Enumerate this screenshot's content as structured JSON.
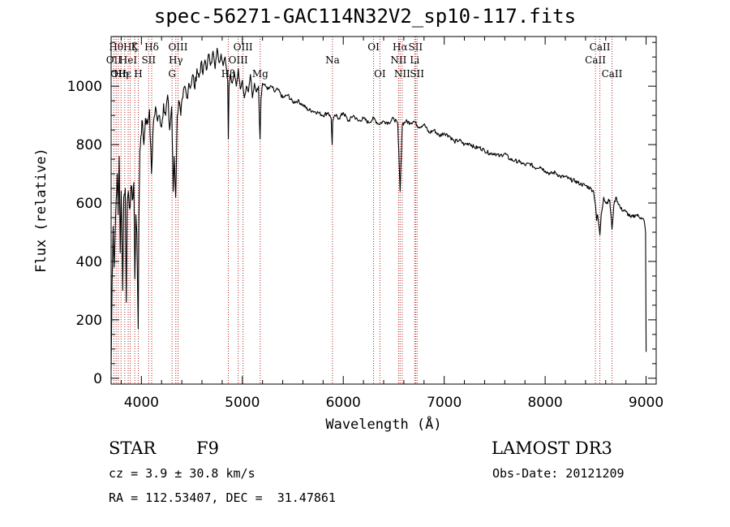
{
  "chart_data": {
    "type": "line",
    "title": "spec-56271-GAC114N32V2_sp10-117.fits",
    "xlabel": "Wavelength (Å)",
    "ylabel": "Flux (relative)",
    "xlim": [
      3700,
      9100
    ],
    "ylim": [
      -20,
      1170
    ],
    "xticks": [
      "4000",
      "5000",
      "6000",
      "7000",
      "8000",
      "9000"
    ],
    "yticks": [
      "0",
      "200",
      "400",
      "600",
      "800",
      "1000"
    ],
    "series": [
      {
        "points": [
          [
            3700,
            30
          ],
          [
            3710,
            330
          ],
          [
            3720,
            520
          ],
          [
            3730,
            380
          ],
          [
            3745,
            560
          ],
          [
            3760,
            700
          ],
          [
            3770,
            560
          ],
          [
            3780,
            760
          ],
          [
            3790,
            430
          ],
          [
            3800,
            640
          ],
          [
            3815,
            300
          ],
          [
            3825,
            620
          ],
          [
            3840,
            650
          ],
          [
            3850,
            260
          ],
          [
            3860,
            600
          ],
          [
            3870,
            640
          ],
          [
            3885,
            580
          ],
          [
            3900,
            660
          ],
          [
            3910,
            610
          ],
          [
            3925,
            670
          ],
          [
            3935,
            340
          ],
          [
            3945,
            560
          ],
          [
            3955,
            500
          ],
          [
            3968,
            170
          ],
          [
            3975,
            520
          ],
          [
            3985,
            780
          ],
          [
            3995,
            830
          ],
          [
            4010,
            880
          ],
          [
            4025,
            800
          ],
          [
            4040,
            890
          ],
          [
            4060,
            870
          ],
          [
            4080,
            920
          ],
          [
            4100,
            700
          ],
          [
            4120,
            880
          ],
          [
            4140,
            930
          ],
          [
            4160,
            880
          ],
          [
            4180,
            900
          ],
          [
            4200,
            860
          ],
          [
            4220,
            940
          ],
          [
            4240,
            900
          ],
          [
            4260,
            970
          ],
          [
            4280,
            850
          ],
          [
            4300,
            930
          ],
          [
            4315,
            640
          ],
          [
            4325,
            760
          ],
          [
            4340,
            620
          ],
          [
            4355,
            900
          ],
          [
            4370,
            950
          ],
          [
            4390,
            900
          ],
          [
            4410,
            960
          ],
          [
            4430,
            1000
          ],
          [
            4450,
            960
          ],
          [
            4470,
            1010
          ],
          [
            4490,
            1000
          ],
          [
            4510,
            1040
          ],
          [
            4530,
            990
          ],
          [
            4550,
            1060
          ],
          [
            4570,
            1030
          ],
          [
            4590,
            1080
          ],
          [
            4610,
            1040
          ],
          [
            4630,
            1090
          ],
          [
            4650,
            1060
          ],
          [
            4670,
            1110
          ],
          [
            4690,
            1080
          ],
          [
            4710,
            1120
          ],
          [
            4730,
            1060
          ],
          [
            4750,
            1130
          ],
          [
            4770,
            1080
          ],
          [
            4790,
            1110
          ],
          [
            4810,
            1070
          ],
          [
            4830,
            1100
          ],
          [
            4845,
            1050
          ],
          [
            4855,
            1020
          ],
          [
            4861,
            820
          ],
          [
            4868,
            1000
          ],
          [
            4880,
            1040
          ],
          [
            4900,
            1010
          ],
          [
            4920,
            1050
          ],
          [
            4940,
            1000
          ],
          [
            4960,
            1060
          ],
          [
            4980,
            990
          ],
          [
            5000,
            1020
          ],
          [
            5020,
            960
          ],
          [
            5040,
            1000
          ],
          [
            5060,
            980
          ],
          [
            5080,
            1040
          ],
          [
            5100,
            960
          ],
          [
            5120,
            1010
          ],
          [
            5140,
            980
          ],
          [
            5160,
            1000
          ],
          [
            5175,
            820
          ],
          [
            5185,
            960
          ],
          [
            5200,
            1010
          ],
          [
            5230,
            1000
          ],
          [
            5260,
            990
          ],
          [
            5290,
            1000
          ],
          [
            5320,
            980
          ],
          [
            5350,
            990
          ],
          [
            5400,
            960
          ],
          [
            5450,
            970
          ],
          [
            5500,
            945
          ],
          [
            5550,
            950
          ],
          [
            5600,
            935
          ],
          [
            5650,
            920
          ],
          [
            5700,
            915
          ],
          [
            5750,
            910
          ],
          [
            5800,
            900
          ],
          [
            5850,
            910
          ],
          [
            5880,
            890
          ],
          [
            5890,
            800
          ],
          [
            5895,
            880
          ],
          [
            5920,
            900
          ],
          [
            5960,
            890
          ],
          [
            6000,
            910
          ],
          [
            6050,
            880
          ],
          [
            6100,
            900
          ],
          [
            6150,
            880
          ],
          [
            6200,
            890
          ],
          [
            6250,
            875
          ],
          [
            6300,
            890
          ],
          [
            6350,
            870
          ],
          [
            6400,
            880
          ],
          [
            6450,
            875
          ],
          [
            6500,
            890
          ],
          [
            6540,
            870
          ],
          [
            6555,
            720
          ],
          [
            6563,
            640
          ],
          [
            6570,
            720
          ],
          [
            6585,
            870
          ],
          [
            6620,
            880
          ],
          [
            6660,
            875
          ],
          [
            6700,
            880
          ],
          [
            6750,
            860
          ],
          [
            6800,
            870
          ],
          [
            6850,
            840
          ],
          [
            6900,
            850
          ],
          [
            6950,
            830
          ],
          [
            7000,
            840
          ],
          [
            7050,
            830
          ],
          [
            7100,
            810
          ],
          [
            7150,
            815
          ],
          [
            7200,
            800
          ],
          [
            7250,
            805
          ],
          [
            7300,
            790
          ],
          [
            7350,
            790
          ],
          [
            7400,
            780
          ],
          [
            7450,
            770
          ],
          [
            7500,
            770
          ],
          [
            7550,
            760
          ],
          [
            7600,
            770
          ],
          [
            7650,
            750
          ],
          [
            7700,
            745
          ],
          [
            7750,
            740
          ],
          [
            7800,
            730
          ],
          [
            7850,
            735
          ],
          [
            7900,
            720
          ],
          [
            7950,
            725
          ],
          [
            8000,
            710
          ],
          [
            8050,
            700
          ],
          [
            8100,
            705
          ],
          [
            8150,
            690
          ],
          [
            8200,
            690
          ],
          [
            8250,
            680
          ],
          [
            8300,
            675
          ],
          [
            8350,
            665
          ],
          [
            8400,
            660
          ],
          [
            8450,
            650
          ],
          [
            8480,
            640
          ],
          [
            8500,
            590
          ],
          [
            8510,
            540
          ],
          [
            8520,
            560
          ],
          [
            8542,
            490
          ],
          [
            8555,
            560
          ],
          [
            8580,
            620
          ],
          [
            8600,
            600
          ],
          [
            8640,
            610
          ],
          [
            8662,
            510
          ],
          [
            8680,
            590
          ],
          [
            8700,
            620
          ],
          [
            8750,
            580
          ],
          [
            8800,
            570
          ],
          [
            8850,
            550
          ],
          [
            8900,
            560
          ],
          [
            8950,
            550
          ],
          [
            8980,
            540
          ],
          [
            8995,
            500
          ],
          [
            9000,
            90
          ]
        ]
      }
    ],
    "lines": [
      {
        "x": 3727,
        "labels": [
          "OII"
        ],
        "row": 2
      },
      {
        "x": 3750,
        "labels": [
          "Hθ"
        ],
        "row": 1
      },
      {
        "x": 3771,
        "labels": [
          "OII"
        ],
        "row": 3
      },
      {
        "x": 3798,
        "labels": [
          "Hη"
        ],
        "row": 3
      },
      {
        "x": 3835,
        "labels": [
          "Hε"
        ],
        "row": 3
      },
      {
        "x": 3869,
        "labels": [
          "HeI"
        ],
        "row": 2
      },
      {
        "x": 3889,
        "labels": [
          "Hζ"
        ],
        "row": 1
      },
      {
        "x": 3934,
        "labels": [
          "K"
        ],
        "row": 1
      },
      {
        "x": 3969,
        "labels": [
          "H"
        ],
        "row": 3
      },
      {
        "x": 4072,
        "labels": [
          "SII"
        ],
        "row": 2
      },
      {
        "x": 4102,
        "labels": [
          "Hδ"
        ],
        "row": 1
      },
      {
        "x": 4304,
        "labels": [
          "G"
        ],
        "row": 3
      },
      {
        "x": 4341,
        "labels": [
          "Hγ"
        ],
        "row": 2
      },
      {
        "x": 4363,
        "labels": [
          "OIII"
        ],
        "row": 1
      },
      {
        "x": 4861,
        "labels": [
          "Hβ"
        ],
        "row": 3
      },
      {
        "x": 4959,
        "labels": [
          "OIII"
        ],
        "row": 2
      },
      {
        "x": 5007,
        "labels": [
          "OIII"
        ],
        "row": 1
      },
      {
        "x": 5177,
        "labels": [
          "Mg"
        ],
        "row": 3
      },
      {
        "x": 5893,
        "labels": [
          "Na"
        ],
        "row": 2
      },
      {
        "x": 6300,
        "labels": [
          "OI"
        ],
        "row": 1
      },
      {
        "x": 6363,
        "labels": [
          "OI"
        ],
        "row": 3
      },
      {
        "x": 6548,
        "labels": [
          "NII"
        ],
        "row": 2
      },
      {
        "x": 6563,
        "labels": [
          "Hα"
        ],
        "row": 1
      },
      {
        "x": 6584,
        "labels": [
          "NII"
        ],
        "row": 3
      },
      {
        "x": 6708,
        "labels": [
          "Li"
        ],
        "row": 2
      },
      {
        "x": 6716,
        "labels": [
          "SII"
        ],
        "row": 1
      },
      {
        "x": 6731,
        "labels": [
          "SII"
        ],
        "row": 3
      },
      {
        "x": 8498,
        "labels": [
          "CaII"
        ],
        "row": 2
      },
      {
        "x": 8542,
        "labels": [
          "CaII"
        ],
        "row": 1
      },
      {
        "x": 8662,
        "labels": [
          "CaII"
        ],
        "row": 3
      }
    ],
    "grid": false,
    "line_color": "#000000",
    "marker_color": "#b22222"
  },
  "info": {
    "object_class": "STAR",
    "subclass": "F9",
    "survey": "LAMOST DR3",
    "redshift": "cz = 3.9 ± 30.8 km/s",
    "obs_date": "Obs-Date: 20121209",
    "coords": "RA = 112.53407, DEC =  31.47861"
  }
}
